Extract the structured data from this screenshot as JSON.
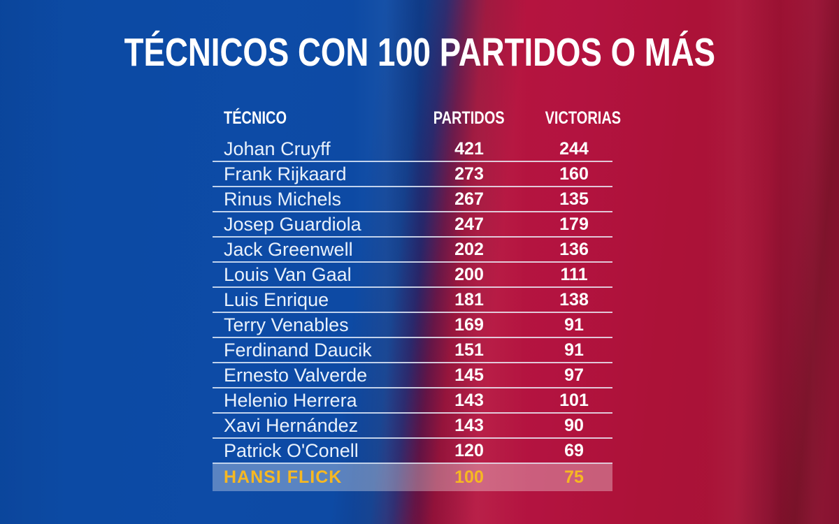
{
  "title": "TÉCNICOS CON 100 PARTIDOS O MÁS",
  "table": {
    "columns": [
      "TÉCNICO",
      "PARTIDOS",
      "VICTORIAS"
    ],
    "rows": [
      {
        "tecnico": "Johan Cruyff",
        "partidos": "421",
        "victorias": "244",
        "highlight": false
      },
      {
        "tecnico": "Frank Rijkaard",
        "partidos": "273",
        "victorias": "160",
        "highlight": false
      },
      {
        "tecnico": "Rinus Michels",
        "partidos": "267",
        "victorias": "135",
        "highlight": false
      },
      {
        "tecnico": "Josep Guardiola",
        "partidos": "247",
        "victorias": "179",
        "highlight": false
      },
      {
        "tecnico": "Jack Greenwell",
        "partidos": "202",
        "victorias": "136",
        "highlight": false
      },
      {
        "tecnico": "Louis Van Gaal",
        "partidos": "200",
        "victorias": "111",
        "highlight": false
      },
      {
        "tecnico": "Luis Enrique",
        "partidos": "181",
        "victorias": "138",
        "highlight": false
      },
      {
        "tecnico": "Terry Venables",
        "partidos": "169",
        "victorias": "91",
        "highlight": false
      },
      {
        "tecnico": "Ferdinand Daucik",
        "partidos": "151",
        "victorias": "91",
        "highlight": false
      },
      {
        "tecnico": "Ernesto Valverde",
        "partidos": "145",
        "victorias": "97",
        "highlight": false
      },
      {
        "tecnico": "Helenio Herrera",
        "partidos": "143",
        "victorias": "101",
        "highlight": false
      },
      {
        "tecnico": "Xavi Hernández",
        "partidos": "143",
        "victorias": "90",
        "highlight": false
      },
      {
        "tecnico": "Patrick O'Conell",
        "partidos": "120",
        "victorias": "69",
        "highlight": false
      },
      {
        "tecnico": "HANSI FLICK",
        "partidos": "100",
        "victorias": "75",
        "highlight": true
      }
    ]
  },
  "colors": {
    "background_blue": "#0c4aa4",
    "background_red": "#ae1139",
    "background_dark_red": "#7d1129",
    "text_white": "#ffffff",
    "text_name": "#e9f1fb",
    "divider": "rgba(238,245,255,0.80)",
    "highlight_bg": "rgba(255,255,255,0.32)",
    "highlight_gold": "#f6b822"
  },
  "chart_data": {
    "type": "table",
    "title": "TÉCNICOS CON 100 PARTIDOS O MÁS",
    "columns": [
      "TÉCNICO",
      "PARTIDOS",
      "VICTORIAS"
    ],
    "rows": [
      [
        "Johan Cruyff",
        421,
        244
      ],
      [
        "Frank Rijkaard",
        273,
        160
      ],
      [
        "Rinus Michels",
        267,
        135
      ],
      [
        "Josep Guardiola",
        247,
        179
      ],
      [
        "Jack Greenwell",
        202,
        136
      ],
      [
        "Louis Van Gaal",
        200,
        111
      ],
      [
        "Luis Enrique",
        181,
        138
      ],
      [
        "Terry Venables",
        169,
        91
      ],
      [
        "Ferdinand Daucik",
        151,
        91
      ],
      [
        "Ernesto Valverde",
        145,
        97
      ],
      [
        "Helenio Herrera",
        143,
        101
      ],
      [
        "Xavi Hernández",
        143,
        90
      ],
      [
        "Patrick O'Conell",
        120,
        69
      ],
      [
        "Hansi Flick",
        100,
        75
      ]
    ],
    "highlighted_row": "Hansi Flick",
    "legend": false,
    "grid": "horizontal-dividers"
  }
}
